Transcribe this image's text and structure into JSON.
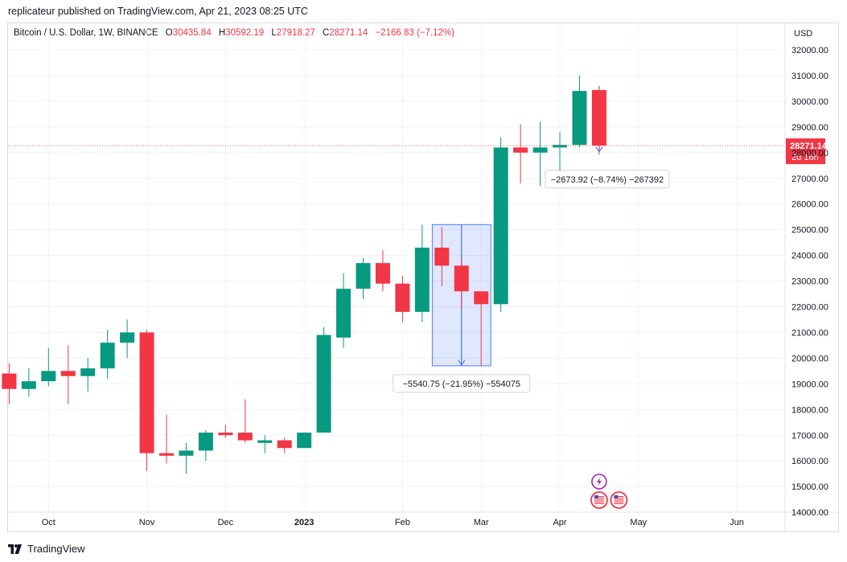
{
  "header": {
    "publisher_line": "replicateur published on TradingView.com, Apr 21, 2023 08:25 UTC"
  },
  "legend": {
    "symbol": "Bitcoin / U.S. Dollar, 1W, BINANCE",
    "o_label": "O",
    "o_value": "30435.84",
    "h_label": "H",
    "h_value": "30592.19",
    "l_label": "L",
    "l_value": "27918.27",
    "c_label": "C",
    "c_value": "28271.14",
    "change": "−2166.83 (−7.12%)"
  },
  "footer": {
    "brand": "TradingView"
  },
  "colors": {
    "up": "#089981",
    "down": "#f23645",
    "measure": "#2962ff",
    "grid": "#f0f3fa"
  },
  "icons": [
    "lightning-event-icon",
    "us-flag-event-icon"
  ],
  "chart_data": {
    "type": "candlestick",
    "currency_label": "USD",
    "ylim": [
      13800,
      32600
    ],
    "y_ticks": [
      "32000.00",
      "31000.00",
      "30000.00",
      "29000.00",
      "28000.00",
      "27000.00",
      "26000.00",
      "25000.00",
      "24000.00",
      "23000.00",
      "22000.00",
      "21000.00",
      "20000.00",
      "19000.00",
      "18000.00",
      "17000.00",
      "16000.00",
      "15000.00",
      "14000.00"
    ],
    "x_labels": [
      {
        "text": "Oct",
        "week": 2
      },
      {
        "text": "Nov",
        "week": 7
      },
      {
        "text": "Dec",
        "week": 11
      },
      {
        "text": "2023",
        "week": 15,
        "bold": true
      },
      {
        "text": "Feb",
        "week": 20
      },
      {
        "text": "Mar",
        "week": 24
      },
      {
        "text": "Apr",
        "week": 28
      },
      {
        "text": "May",
        "week": 32
      },
      {
        "text": "Jun",
        "week": 37
      }
    ],
    "candles": [
      {
        "o": 19400,
        "h": 19800,
        "l": 18200,
        "c": 18800
      },
      {
        "o": 18800,
        "h": 19600,
        "l": 18500,
        "c": 19100
      },
      {
        "o": 19100,
        "h": 20400,
        "l": 18900,
        "c": 19500
      },
      {
        "o": 19500,
        "h": 20500,
        "l": 18200,
        "c": 19300
      },
      {
        "o": 19300,
        "h": 20000,
        "l": 18700,
        "c": 19600
      },
      {
        "o": 19600,
        "h": 21100,
        "l": 19200,
        "c": 20600
      },
      {
        "o": 20600,
        "h": 21500,
        "l": 20000,
        "c": 21000
      },
      {
        "o": 21000,
        "h": 21100,
        "l": 15600,
        "c": 16300
      },
      {
        "o": 16300,
        "h": 17800,
        "l": 15900,
        "c": 16200
      },
      {
        "o": 16200,
        "h": 16700,
        "l": 15500,
        "c": 16400
      },
      {
        "o": 16400,
        "h": 17200,
        "l": 16000,
        "c": 17100
      },
      {
        "o": 17100,
        "h": 17400,
        "l": 16900,
        "c": 17000
      },
      {
        "o": 17100,
        "h": 18400,
        "l": 16700,
        "c": 16800
      },
      {
        "o": 16700,
        "h": 17000,
        "l": 16300,
        "c": 16800
      },
      {
        "o": 16800,
        "h": 16900,
        "l": 16300,
        "c": 16500
      },
      {
        "o": 16500,
        "h": 17100,
        "l": 16500,
        "c": 17100
      },
      {
        "o": 17100,
        "h": 21200,
        "l": 17100,
        "c": 20900
      },
      {
        "o": 20800,
        "h": 23300,
        "l": 20400,
        "c": 22700
      },
      {
        "o": 22700,
        "h": 23900,
        "l": 22300,
        "c": 23700
      },
      {
        "o": 23700,
        "h": 24200,
        "l": 22600,
        "c": 22900
      },
      {
        "o": 22900,
        "h": 23200,
        "l": 21400,
        "c": 21800
      },
      {
        "o": 21800,
        "h": 25200,
        "l": 21400,
        "c": 24300
      },
      {
        "o": 24300,
        "h": 25100,
        "l": 22800,
        "c": 23600
      },
      {
        "o": 23600,
        "h": 23900,
        "l": 21900,
        "c": 22600
      },
      {
        "o": 22600,
        "h": 22600,
        "l": 19700,
        "c": 22100
      },
      {
        "o": 22100,
        "h": 28600,
        "l": 21800,
        "c": 28200
      },
      {
        "o": 28200,
        "h": 29100,
        "l": 26800,
        "c": 28000
      },
      {
        "o": 28000,
        "h": 29200,
        "l": 26700,
        "c": 28200
      },
      {
        "o": 28200,
        "h": 28800,
        "l": 27300,
        "c": 28300
      },
      {
        "o": 28300,
        "h": 31000,
        "l": 28200,
        "c": 30400
      },
      {
        "o": 30435.84,
        "h": 30592.19,
        "l": 27918.27,
        "c": 28271.14
      }
    ],
    "last_price_label": "28271.14",
    "countdown_label": "2d 16h",
    "measurements": [
      {
        "label": "−5540.75 (−21.95%) −554075",
        "from_week": 22,
        "to_week": 24,
        "from_price": 25200,
        "to_price": 19700,
        "shaded": true
      },
      {
        "label": "−2673.92 (−8.74%) −267392",
        "from_week": 30,
        "to_week": 30,
        "from_price": 30600,
        "to_price": 28000,
        "shaded": false
      }
    ],
    "event_markers": [
      {
        "icon": "lightning-event-icon",
        "week": 30
      },
      {
        "icon": "us-flag-event-icon",
        "week": 30
      },
      {
        "icon": "us-flag-event-icon",
        "week": 31
      }
    ]
  }
}
